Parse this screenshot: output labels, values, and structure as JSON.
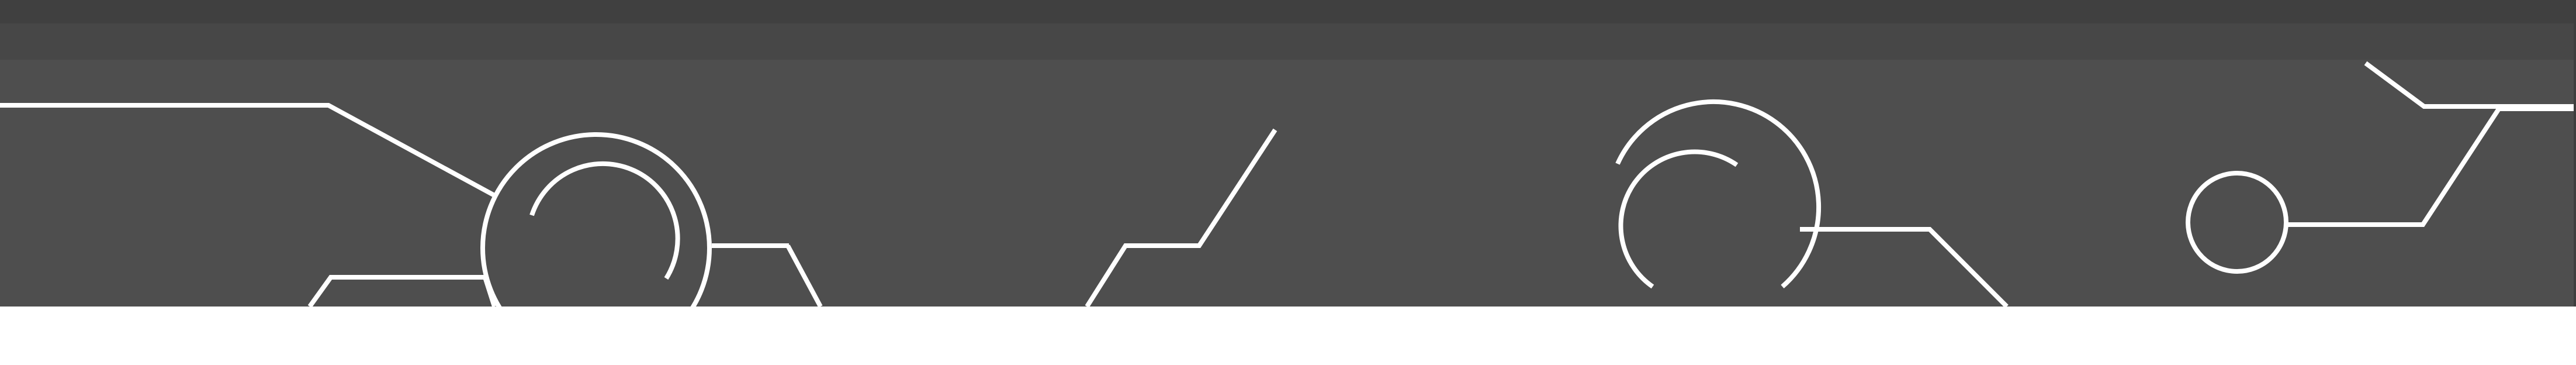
{
  "graphic": {
    "kind": "decorative-circuit-banner",
    "colors": {
      "background": "#4e4e4e",
      "top_band": "#404040",
      "mid_band": "#474747",
      "line": "#ffffff",
      "page": "#ffffff"
    }
  }
}
